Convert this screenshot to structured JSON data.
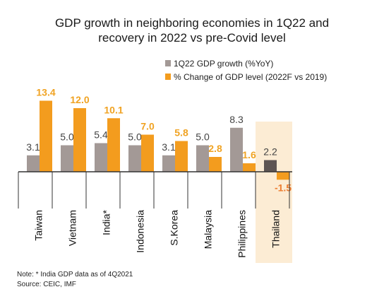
{
  "title_lines": [
    "GDP growth in neighboring economies in 1Q22 and",
    "recovery in 2022 vs pre-Covid level"
  ],
  "legend": [
    {
      "label": "1Q22 GDP growth (%YoY)",
      "color": "#a39996"
    },
    {
      "label": "% Change of GDP level (2022F vs 2019)",
      "color": "#f39c1e"
    }
  ],
  "note_lines": [
    "Note:  * India GDP data as of 4Q2021",
    "Source: CEIC, IMF"
  ],
  "chart_data": {
    "type": "bar",
    "title": "GDP growth in neighboring economies in 1Q22 and recovery in 2022 vs pre-Covid level",
    "categories": [
      "Taiwan",
      "Vietnam",
      "India*",
      "Indonesia",
      "S.Korea",
      "Malaysia",
      "Philippines",
      "Thailand"
    ],
    "series": [
      {
        "name": "1Q22 GDP growth (%YoY)",
        "values": [
          3.1,
          5.0,
          5.4,
          5.0,
          3.1,
          5.0,
          8.3,
          2.2
        ],
        "color": "#a39996",
        "label_color": "#444444"
      },
      {
        "name": "% Change of GDP level (2022F vs 2019)",
        "values": [
          13.4,
          12.0,
          10.1,
          7.0,
          5.8,
          2.8,
          1.6,
          -1.5
        ],
        "color": "#f39c1e",
        "label_color": "#f0a323"
      }
    ],
    "highlight_category": "Thailand",
    "highlight_series0_color": "#5e5553",
    "highlight_label_color": "#ed7d31",
    "highlight_background": "#fcecd4",
    "data_labels": true,
    "grid": false
  }
}
